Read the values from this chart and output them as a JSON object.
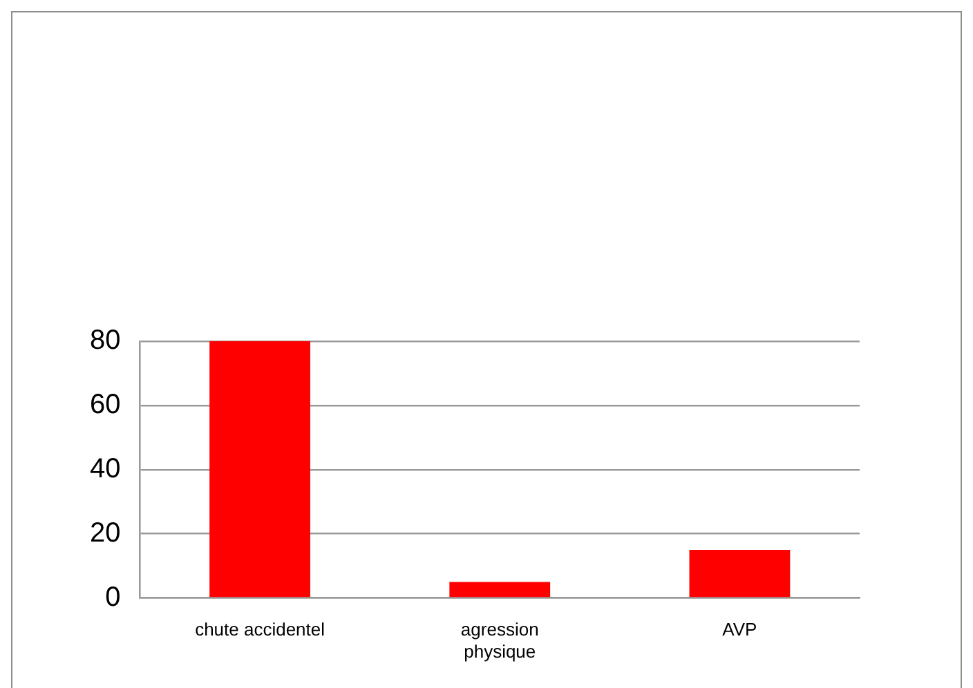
{
  "chart_data": {
    "type": "bar",
    "categories": [
      "chute accidentel",
      "agression physique",
      "AVP"
    ],
    "values": [
      80,
      5,
      15
    ],
    "color": "#ff0000",
    "ylim": [
      0,
      80
    ],
    "yticks": [
      0,
      20,
      40,
      60,
      80
    ],
    "grid": "y"
  }
}
